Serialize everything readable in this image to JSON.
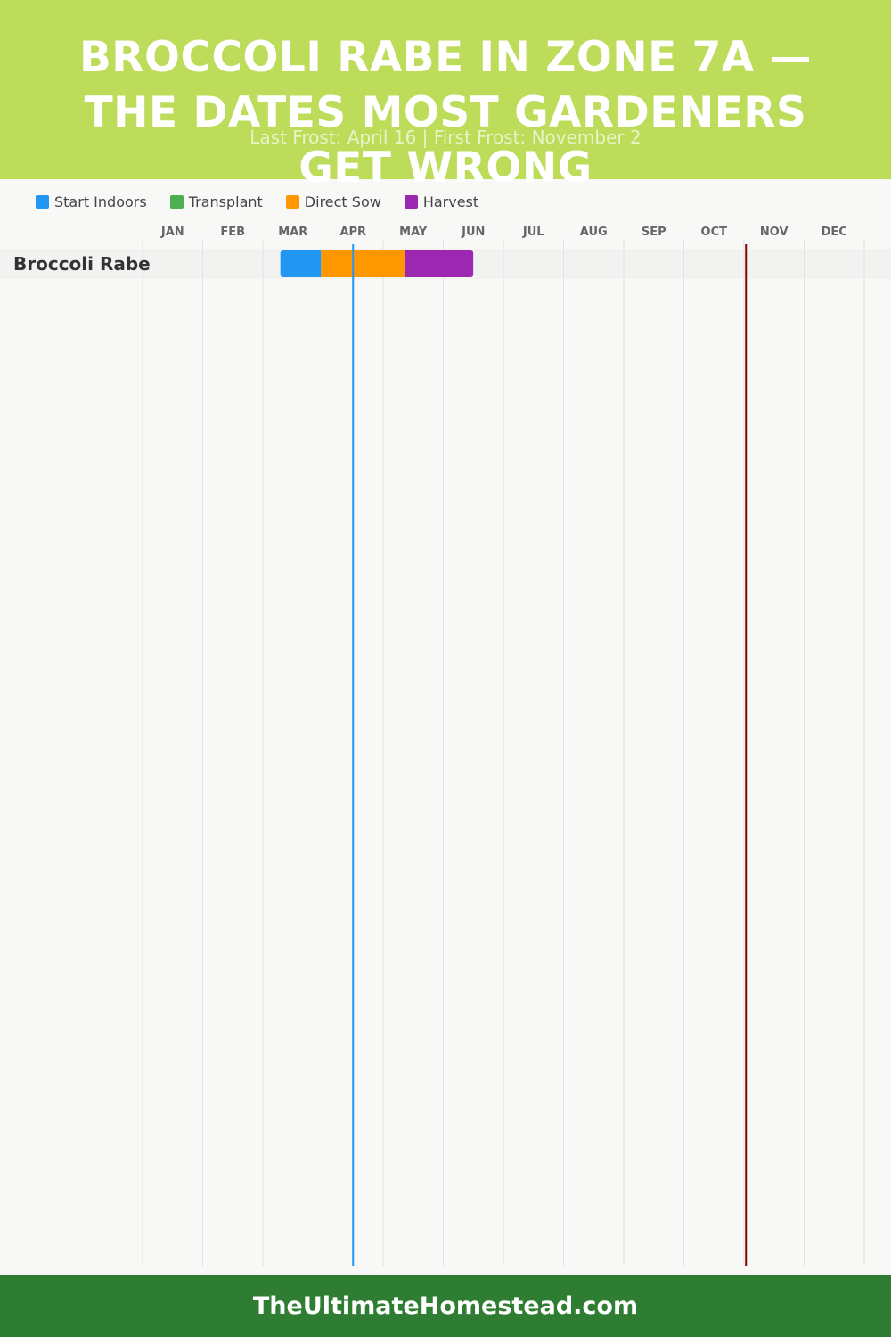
{
  "header": {
    "title": "BROCCOLI RABE IN ZONE 7A — THE DATES MOST GARDENERS GET WRONG",
    "subtitle": "Last Frost: April 16 | First Frost: November 2",
    "bg_color": "#bcdc5a"
  },
  "legend": [
    {
      "label": "Start Indoors",
      "color": "#2196f3"
    },
    {
      "label": "Transplant",
      "color": "#4caf50"
    },
    {
      "label": "Direct Sow",
      "color": "#ff9800"
    },
    {
      "label": "Harvest",
      "color": "#9c27b0"
    }
  ],
  "chart_data": {
    "type": "gantt",
    "months": [
      "JAN",
      "FEB",
      "MAR",
      "APR",
      "MAY",
      "JUN",
      "JUL",
      "AUG",
      "SEP",
      "OCT",
      "NOV",
      "DEC"
    ],
    "rows": [
      {
        "crop": "Broccoli Rabe",
        "segments": [
          {
            "phase": "Start Indoors",
            "start": "Mar 10",
            "end": "Mar 31",
            "color": "#2196f3"
          },
          {
            "phase": "Direct Sow",
            "start": "Mar 31",
            "end": "May 12",
            "color": "#ff9800"
          },
          {
            "phase": "Harvest",
            "start": "May 12",
            "end": "Jun 16",
            "color": "#9c27b0"
          }
        ]
      }
    ],
    "markers": [
      {
        "name": "Last Frost",
        "date": "April 16",
        "color": "#2196f3"
      },
      {
        "name": "First Frost",
        "date": "November 2",
        "color": "#8b0000"
      }
    ],
    "grid": true
  },
  "footer": {
    "text": "TheUltimateHomestead.com",
    "bg_color": "#2e7d32"
  }
}
